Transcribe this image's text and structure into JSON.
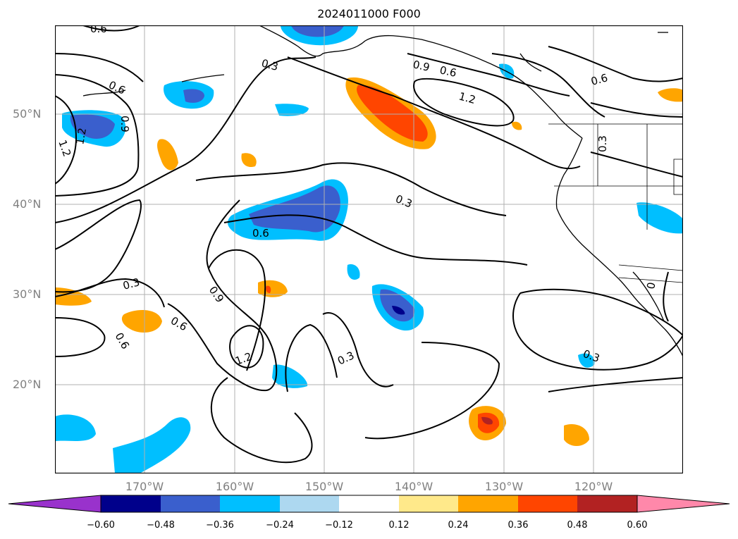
{
  "title": "2024011000 F000",
  "map": {
    "lat_labels": [
      "50°N",
      "40°N",
      "30°N",
      "20°N"
    ],
    "lon_labels": [
      "170°W",
      "160°W",
      "150°W",
      "140°W",
      "130°W",
      "120°W"
    ],
    "contour_labels": [
      "0.6",
      "0.6",
      "0.3",
      "0.9",
      "0.6",
      "1.2",
      "0.6",
      "1.2",
      "0.9",
      "1.2",
      "0.3",
      "0.3",
      "0.6",
      "0.3",
      "0.9",
      "0.6",
      "0.6",
      "1.2",
      "0.3",
      "0.3",
      "0"
    ],
    "colors": {
      "border": "#000000",
      "grid": "#b0b0b0",
      "contour": "#000000"
    }
  },
  "colorbar": {
    "ticks": [
      "−0.60",
      "−0.48",
      "−0.36",
      "−0.24",
      "−0.12",
      "0.12",
      "0.24",
      "0.36",
      "0.48",
      "0.60"
    ],
    "colors": [
      "#9932cc",
      "#00008b",
      "#3a5fcd",
      "#00bfff",
      "#add8f0",
      "#ffffff",
      "#ffe98a",
      "#ffa500",
      "#ff4500",
      "#b22222",
      "#ff88aa"
    ]
  }
}
